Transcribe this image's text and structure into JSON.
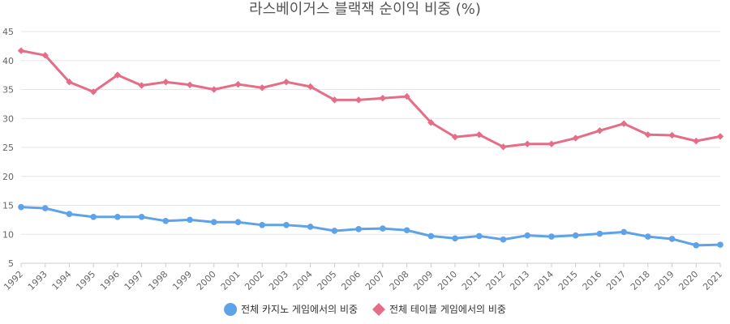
{
  "chart_data": {
    "type": "line",
    "title": "라스베이거스 블랙잭 순이익 비중 (%)",
    "xlabel": "",
    "ylabel": "",
    "x": [
      "1992",
      "1993",
      "1994",
      "1995",
      "1996",
      "1997",
      "1998",
      "1999",
      "2000",
      "2001",
      "2002",
      "2003",
      "2004",
      "2005",
      "2006",
      "2007",
      "2008",
      "2009",
      "2010",
      "2011",
      "2012",
      "2013",
      "2014",
      "2015",
      "2016",
      "2017",
      "2018",
      "2019",
      "2020",
      "2021"
    ],
    "ylim": [
      5,
      45
    ],
    "yticks": [
      "5",
      "10",
      "15",
      "20",
      "25",
      "30",
      "35",
      "40",
      "45"
    ],
    "grid": true,
    "legend_position": "bottom",
    "series": [
      {
        "name": "전체 카지노 게임에서의 비중",
        "color": "#5ea2e8",
        "marker": "circle",
        "values": [
          14.7,
          14.5,
          13.5,
          13.0,
          13.0,
          13.0,
          12.3,
          12.5,
          12.1,
          12.1,
          11.6,
          11.6,
          11.3,
          10.6,
          10.9,
          11.0,
          10.7,
          9.7,
          9.3,
          9.7,
          9.1,
          9.8,
          9.6,
          9.8,
          10.1,
          10.4,
          9.6,
          9.2,
          8.1,
          8.2
        ]
      },
      {
        "name": "전체 테이블 게임에서의 비중",
        "color": "#e66d87",
        "marker": "diamond",
        "values": [
          41.7,
          40.9,
          36.3,
          34.6,
          37.5,
          35.7,
          36.3,
          35.8,
          35.0,
          35.9,
          35.3,
          36.3,
          35.5,
          33.2,
          33.2,
          33.5,
          33.8,
          29.3,
          26.8,
          27.2,
          25.1,
          25.6,
          25.6,
          26.6,
          27.9,
          29.1,
          27.2,
          27.1,
          26.1,
          26.9
        ]
      }
    ]
  }
}
